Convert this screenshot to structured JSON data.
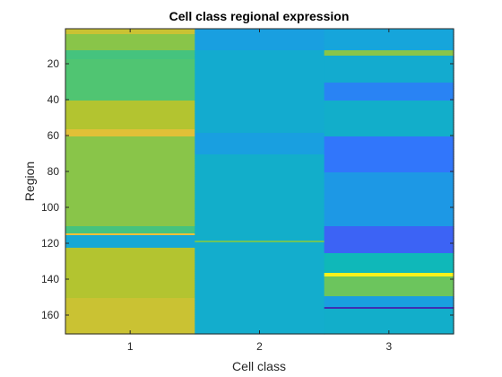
{
  "chart_data": {
    "type": "heatmap",
    "title": "Cell class regional expression",
    "xlabel": "Cell class",
    "ylabel": "Region",
    "x_categories": [
      "1",
      "2",
      "3"
    ],
    "y_range": [
      1,
      170
    ],
    "y_ticks": [
      20,
      40,
      60,
      80,
      100,
      120,
      140,
      160
    ],
    "y_direction": "reverse",
    "colormap": "parula",
    "color_range": [
      0,
      1
    ],
    "columns": [
      {
        "cell_class": "1",
        "base_value": 0.62,
        "bands": [
          {
            "from": 1,
            "to": 3,
            "value": 0.8
          },
          {
            "from": 4,
            "to": 12,
            "value": 0.7
          },
          {
            "from": 13,
            "to": 17,
            "value": 0.6
          },
          {
            "from": 18,
            "to": 40,
            "value": 0.62
          },
          {
            "from": 41,
            "to": 56,
            "value": 0.76
          },
          {
            "from": 57,
            "to": 60,
            "value": 0.84
          },
          {
            "from": 61,
            "to": 110,
            "value": 0.7
          },
          {
            "from": 111,
            "to": 114,
            "value": 0.6
          },
          {
            "from": 115,
            "to": 115,
            "value": 0.88
          },
          {
            "from": 116,
            "to": 122,
            "value": 0.4
          },
          {
            "from": 123,
            "to": 150,
            "value": 0.76
          },
          {
            "from": 151,
            "to": 170,
            "value": 0.8
          }
        ]
      },
      {
        "cell_class": "2",
        "base_value": 0.4,
        "bands": [
          {
            "from": 1,
            "to": 12,
            "value": 0.36
          },
          {
            "from": 13,
            "to": 58,
            "value": 0.42
          },
          {
            "from": 59,
            "to": 70,
            "value": 0.36
          },
          {
            "from": 71,
            "to": 118,
            "value": 0.44
          },
          {
            "from": 119,
            "to": 119,
            "value": 0.66
          },
          {
            "from": 120,
            "to": 170,
            "value": 0.43
          }
        ]
      },
      {
        "cell_class": "3",
        "base_value": 0.4,
        "bands": [
          {
            "from": 1,
            "to": 12,
            "value": 0.38
          },
          {
            "from": 13,
            "to": 15,
            "value": 0.7
          },
          {
            "from": 16,
            "to": 30,
            "value": 0.42
          },
          {
            "from": 31,
            "to": 40,
            "value": 0.28
          },
          {
            "from": 41,
            "to": 60,
            "value": 0.44
          },
          {
            "from": 61,
            "to": 80,
            "value": 0.24
          },
          {
            "from": 81,
            "to": 110,
            "value": 0.34
          },
          {
            "from": 111,
            "to": 125,
            "value": 0.18
          },
          {
            "from": 126,
            "to": 136,
            "value": 0.5
          },
          {
            "from": 137,
            "to": 138,
            "value": 0.98
          },
          {
            "from": 139,
            "to": 149,
            "value": 0.66
          },
          {
            "from": 150,
            "to": 155,
            "value": 0.36
          },
          {
            "from": 156,
            "to": 156,
            "value": 0.02
          },
          {
            "from": 157,
            "to": 170,
            "value": 0.44
          }
        ]
      }
    ]
  }
}
